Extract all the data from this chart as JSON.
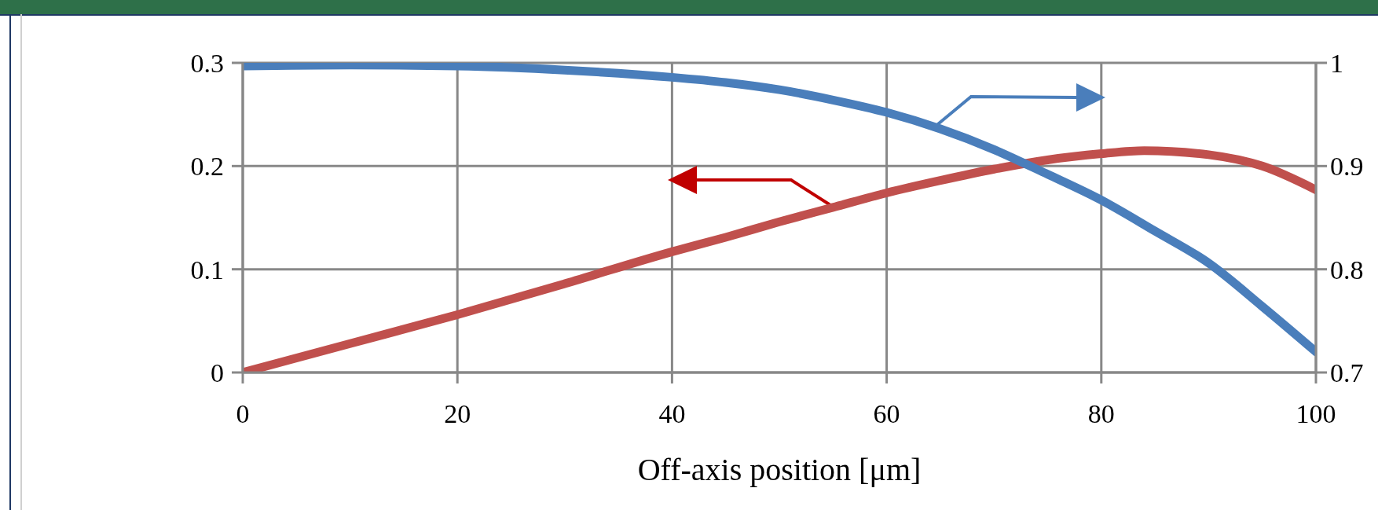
{
  "chart_data": {
    "type": "line",
    "xlabel": "Off-axis position [μm]",
    "x": [
      0,
      10,
      20,
      30,
      40,
      45,
      50,
      55,
      60,
      65,
      70,
      75,
      80,
      84,
      90,
      95,
      100
    ],
    "series": [
      {
        "color": "#c0504d",
        "values": [
          0,
          0.028,
          0.056,
          0.086,
          0.117,
          0.131,
          0.146,
          0.16,
          0.174,
          0.186,
          0.197,
          0.206,
          0.212,
          0.215,
          0.211,
          0.2,
          0.177
        ]
      },
      {
        "color": "#4a7ebb",
        "axis": "y2",
        "x": [
          0,
          10,
          20,
          30,
          40,
          45,
          50,
          55,
          60,
          65,
          70,
          75,
          80,
          85,
          90,
          95,
          100
        ],
        "values": [
          0.997,
          0.998,
          0.997,
          0.993,
          0.986,
          0.981,
          0.974,
          0.964,
          0.952,
          0.936,
          0.916,
          0.892,
          0.867,
          0.837,
          0.806,
          0.764,
          0.72
        ]
      }
    ],
    "xlim": [
      0,
      100
    ],
    "xticks": [
      0,
      20,
      40,
      60,
      80,
      100
    ],
    "ylim": [
      0,
      0.3
    ],
    "yticks": [
      0,
      0.1,
      0.2,
      0.3
    ],
    "y2lim": [
      0.7,
      1
    ],
    "y2ticks": [
      {
        "value": 0.7,
        "label": "0.7"
      },
      {
        "value": 0.8,
        "label": "0.8"
      },
      {
        "value": 0.9,
        "label": "0.9"
      },
      1
    ],
    "grid": true,
    "marker": "none",
    "line_style": "solid"
  }
}
